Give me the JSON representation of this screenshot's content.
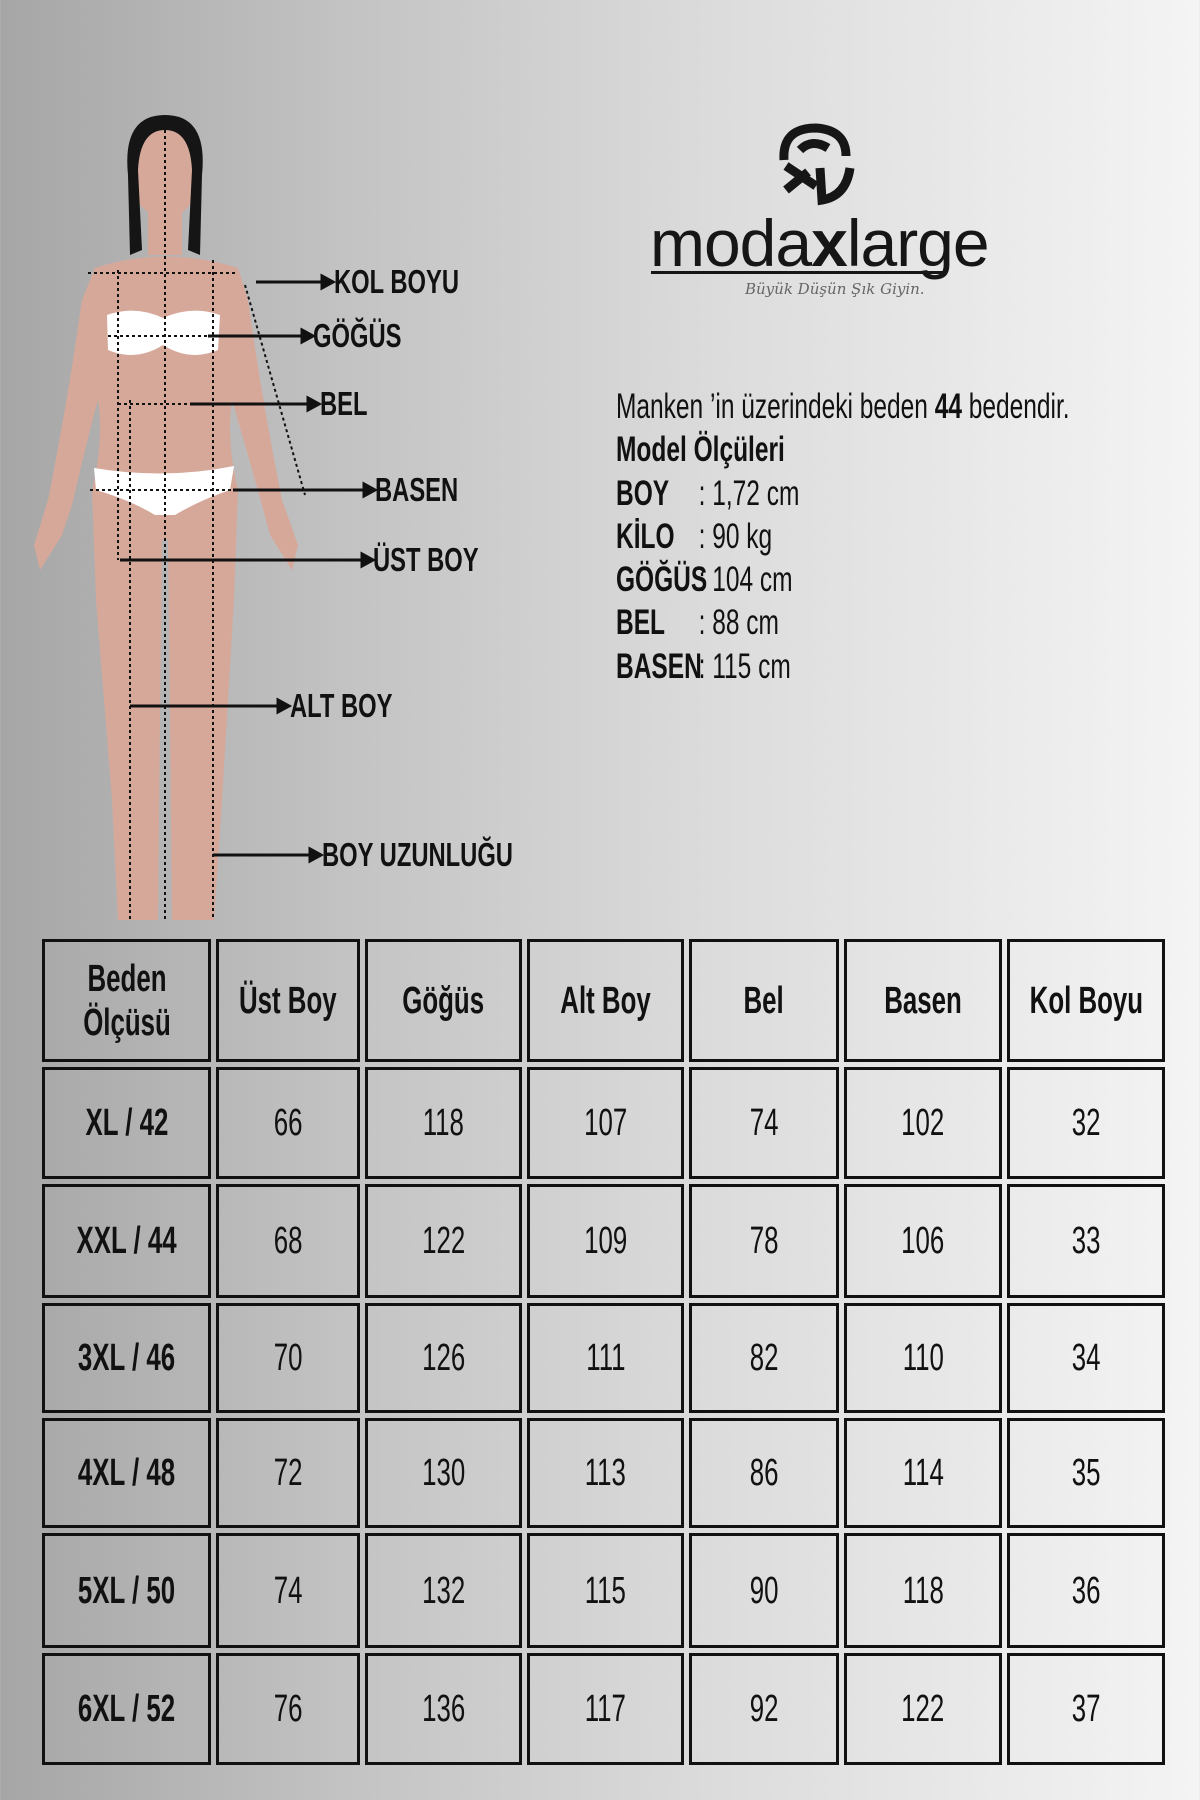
{
  "brand": {
    "name_part1": "moda",
    "name_part2": "x",
    "name_part3": "large",
    "tagline": "Büyük Düşün Şık Giyin.",
    "logo_icon": "mxl-monogram-icon"
  },
  "figure": {
    "labels": {
      "kol_boyu": "KOL BOYU",
      "gogus": "GÖĞÜS",
      "bel": "BEL",
      "basen": "BASEN",
      "ust_boy": "ÜST BOY",
      "alt_boy": "ALT BOY",
      "boy_uzunlugu": "BOY UZUNLUĞU"
    }
  },
  "model_info": {
    "intro_pre": "Manken ’in üzerindeki beden ",
    "intro_size": "44",
    "intro_post": " bedendir.",
    "title": "Model Ölçüleri",
    "rows": [
      {
        "key": "BOY",
        "value": ": 1,72 cm"
      },
      {
        "key": "KİLO",
        "value": ": 90 kg"
      },
      {
        "key": "GÖĞÜS",
        "value": ": 104 cm"
      },
      {
        "key": "BEL",
        "value": ": 88 cm"
      },
      {
        "key": "BASEN",
        "value": ": 115 cm"
      }
    ]
  },
  "size_table": {
    "headers": [
      "Beden Ölçüsü",
      "Üst Boy",
      "Göğüs",
      "Alt Boy",
      "Bel",
      "Basen",
      "Kol Boyu"
    ],
    "rows": [
      [
        "XL / 42",
        "66",
        "118",
        "107",
        "74",
        "102",
        "32"
      ],
      [
        "XXL / 44",
        "68",
        "122",
        "109",
        "78",
        "106",
        "33"
      ],
      [
        "3XL / 46",
        "70",
        "126",
        "111",
        "82",
        "110",
        "34"
      ],
      [
        "4XL / 48",
        "72",
        "130",
        "113",
        "86",
        "114",
        "35"
      ],
      [
        "5XL / 50",
        "74",
        "132",
        "115",
        "90",
        "118",
        "36"
      ],
      [
        "6XL / 52",
        "76",
        "136",
        "117",
        "92",
        "122",
        "37"
      ]
    ]
  },
  "colors": {
    "skin": "#d6a89a",
    "hair": "#151515",
    "ink": "#111111"
  }
}
